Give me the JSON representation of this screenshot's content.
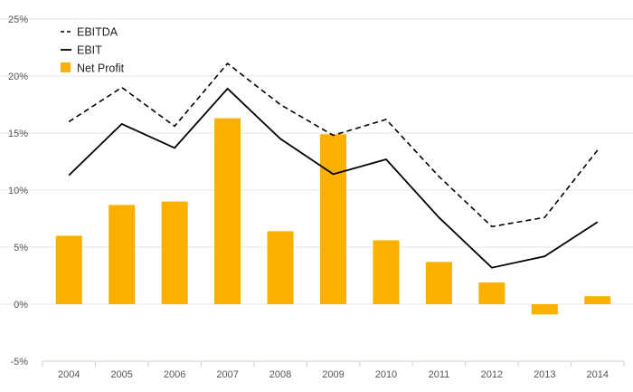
{
  "chart_data": {
    "type": "bar",
    "categories": [
      "2004",
      "2005",
      "2006",
      "2007",
      "2008",
      "2009",
      "2010",
      "2011",
      "2012",
      "2013",
      "2014"
    ],
    "series": [
      {
        "name": "EBITDA",
        "type": "line",
        "style": "dashed",
        "color": "#000000",
        "values": [
          16.0,
          19.0,
          15.6,
          21.1,
          17.5,
          14.8,
          16.2,
          11.2,
          6.8,
          7.6,
          13.5
        ]
      },
      {
        "name": "EBIT",
        "type": "line",
        "style": "solid",
        "color": "#000000",
        "values": [
          11.3,
          15.8,
          13.7,
          18.9,
          14.5,
          11.4,
          12.7,
          7.6,
          3.2,
          4.2,
          7.2
        ]
      },
      {
        "name": "Net Profit",
        "type": "bar",
        "color": "#F9B000",
        "values": [
          6.0,
          8.7,
          9.0,
          16.3,
          6.4,
          14.9,
          5.6,
          3.7,
          1.9,
          -0.9,
          0.7
        ]
      }
    ],
    "y_ticks": [
      "25%",
      "20%",
      "15%",
      "10%",
      "5%",
      "0%",
      "-5%"
    ],
    "ylim": [
      -5,
      25
    ],
    "grid": true,
    "legend_position": "top-left"
  }
}
